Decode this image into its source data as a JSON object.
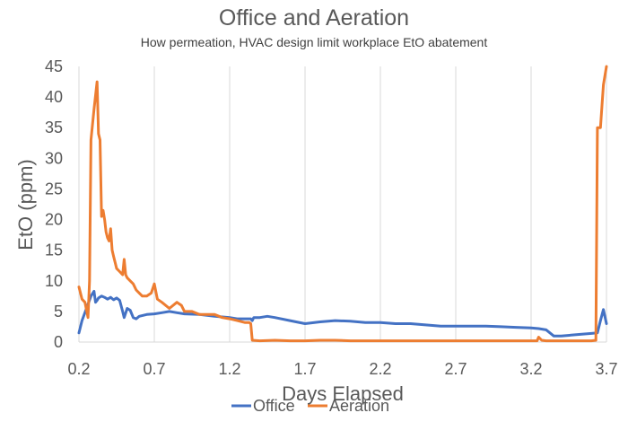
{
  "chart_data": {
    "type": "line",
    "title": "Office and Aeration",
    "subtitle": "How permeation, HVAC design limit workplace EtO abatement",
    "xlabel": "Days Elapsed",
    "ylabel": "EtO (ppm)",
    "xlim": [
      0.2,
      3.7
    ],
    "ylim": [
      0,
      45
    ],
    "x_ticks": [
      "0.2",
      "0.7",
      "1.2",
      "1.7",
      "2.2",
      "2.7",
      "3.2",
      "3.7"
    ],
    "y_ticks": [
      "0",
      "5",
      "10",
      "15",
      "20",
      "25",
      "30",
      "35",
      "40",
      "45"
    ],
    "grid": "vertical",
    "legend_position": "bottom",
    "series": [
      {
        "name": "Office",
        "color": "#4472c4",
        "x": [
          0.2,
          0.22,
          0.25,
          0.28,
          0.3,
          0.31,
          0.32,
          0.33,
          0.35,
          0.37,
          0.39,
          0.41,
          0.43,
          0.45,
          0.47,
          0.49,
          0.5,
          0.52,
          0.54,
          0.56,
          0.58,
          0.6,
          0.65,
          0.7,
          0.75,
          0.8,
          0.85,
          0.9,
          1.0,
          1.1,
          1.2,
          1.25,
          1.3,
          1.34,
          1.35,
          1.36,
          1.4,
          1.45,
          1.5,
          1.6,
          1.7,
          1.8,
          1.9,
          2.0,
          2.1,
          2.2,
          2.3,
          2.4,
          2.5,
          2.6,
          2.7,
          2.8,
          2.9,
          3.0,
          3.1,
          3.2,
          3.25,
          3.3,
          3.35,
          3.4,
          3.5,
          3.6,
          3.64,
          3.66,
          3.68,
          3.7
        ],
        "y": [
          1.5,
          3.5,
          5.5,
          7.5,
          8.3,
          6.5,
          6.8,
          7.2,
          7.5,
          7.3,
          7.0,
          7.3,
          6.9,
          7.2,
          6.8,
          5.0,
          4.0,
          5.5,
          5.2,
          4.0,
          3.8,
          4.2,
          4.5,
          4.6,
          4.8,
          5.0,
          4.8,
          4.6,
          4.5,
          4.2,
          4.0,
          3.8,
          3.8,
          3.8,
          3.5,
          4.0,
          4.0,
          4.2,
          4.0,
          3.5,
          3.0,
          3.3,
          3.5,
          3.4,
          3.2,
          3.2,
          3.0,
          3.0,
          2.8,
          2.6,
          2.6,
          2.6,
          2.6,
          2.5,
          2.4,
          2.3,
          2.2,
          2.0,
          1.0,
          1.0,
          1.2,
          1.4,
          1.5,
          3.5,
          5.3,
          3.0
        ]
      },
      {
        "name": "Aeration",
        "color": "#ed7d31",
        "x": [
          0.2,
          0.22,
          0.24,
          0.26,
          0.27,
          0.28,
          0.3,
          0.32,
          0.33,
          0.34,
          0.35,
          0.36,
          0.37,
          0.38,
          0.39,
          0.4,
          0.41,
          0.42,
          0.43,
          0.44,
          0.45,
          0.47,
          0.49,
          0.5,
          0.51,
          0.52,
          0.54,
          0.56,
          0.58,
          0.6,
          0.62,
          0.65,
          0.68,
          0.7,
          0.72,
          0.75,
          0.8,
          0.85,
          0.88,
          0.9,
          0.95,
          1.0,
          1.05,
          1.1,
          1.15,
          1.2,
          1.25,
          1.3,
          1.33,
          1.34,
          1.35,
          1.4,
          1.5,
          1.6,
          1.7,
          1.8,
          1.9,
          2.0,
          2.2,
          2.5,
          2.8,
          3.0,
          3.2,
          3.24,
          3.25,
          3.27,
          3.3,
          3.4,
          3.5,
          3.6,
          3.63,
          3.64,
          3.66,
          3.68,
          3.7
        ],
        "y": [
          9.0,
          7.0,
          6.5,
          4.0,
          10.0,
          33.0,
          38.0,
          42.5,
          34.0,
          33.0,
          20.5,
          21.5,
          20.0,
          18.0,
          17.0,
          16.5,
          18.5,
          15.0,
          14.0,
          13.0,
          12.0,
          11.5,
          11.0,
          13.5,
          11.0,
          10.5,
          10.0,
          9.5,
          8.5,
          8.0,
          7.5,
          7.5,
          8.0,
          9.5,
          7.0,
          6.5,
          5.5,
          6.5,
          6.0,
          5.0,
          5.0,
          4.5,
          4.5,
          4.5,
          4.0,
          3.8,
          3.5,
          3.2,
          3.2,
          3.0,
          0.3,
          0.2,
          0.3,
          0.2,
          0.2,
          0.3,
          0.3,
          0.2,
          0.2,
          0.2,
          0.2,
          0.2,
          0.2,
          0.2,
          0.8,
          0.3,
          0.2,
          0.2,
          0.2,
          0.2,
          0.3,
          35.0,
          35.0,
          42.0,
          45.0
        ]
      }
    ]
  }
}
